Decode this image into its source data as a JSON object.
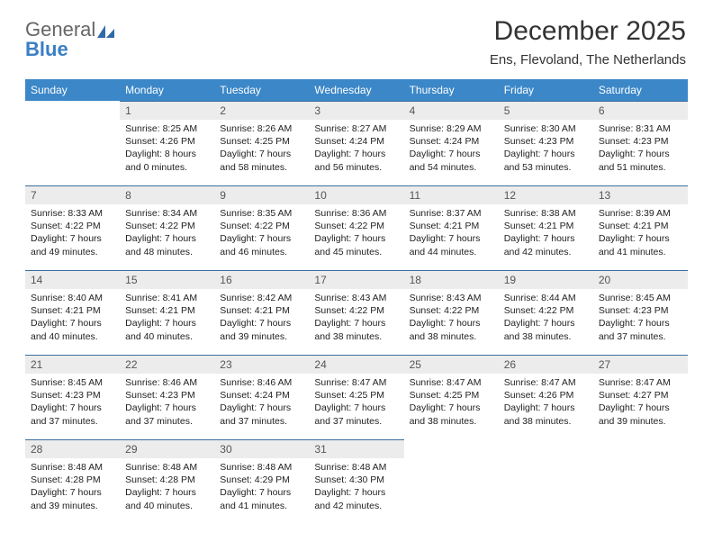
{
  "logo": {
    "part1": "General",
    "part2": "Blue"
  },
  "header": {
    "title": "December 2025",
    "location": "Ens, Flevoland, The Netherlands"
  },
  "colors": {
    "header_bg": "#3b87c8",
    "header_text": "#ffffff",
    "daynum_bg": "#ececec",
    "daynum_border": "#3b6fa0",
    "text": "#222222",
    "logo_blue": "#3a7fc4"
  },
  "weekdays": [
    "Sunday",
    "Monday",
    "Tuesday",
    "Wednesday",
    "Thursday",
    "Friday",
    "Saturday"
  ],
  "leading_blanks": 1,
  "days": [
    {
      "n": "1",
      "sunrise": "8:25 AM",
      "sunset": "4:26 PM",
      "daylight": "8 hours and 0 minutes."
    },
    {
      "n": "2",
      "sunrise": "8:26 AM",
      "sunset": "4:25 PM",
      "daylight": "7 hours and 58 minutes."
    },
    {
      "n": "3",
      "sunrise": "8:27 AM",
      "sunset": "4:24 PM",
      "daylight": "7 hours and 56 minutes."
    },
    {
      "n": "4",
      "sunrise": "8:29 AM",
      "sunset": "4:24 PM",
      "daylight": "7 hours and 54 minutes."
    },
    {
      "n": "5",
      "sunrise": "8:30 AM",
      "sunset": "4:23 PM",
      "daylight": "7 hours and 53 minutes."
    },
    {
      "n": "6",
      "sunrise": "8:31 AM",
      "sunset": "4:23 PM",
      "daylight": "7 hours and 51 minutes."
    },
    {
      "n": "7",
      "sunrise": "8:33 AM",
      "sunset": "4:22 PM",
      "daylight": "7 hours and 49 minutes."
    },
    {
      "n": "8",
      "sunrise": "8:34 AM",
      "sunset": "4:22 PM",
      "daylight": "7 hours and 48 minutes."
    },
    {
      "n": "9",
      "sunrise": "8:35 AM",
      "sunset": "4:22 PM",
      "daylight": "7 hours and 46 minutes."
    },
    {
      "n": "10",
      "sunrise": "8:36 AM",
      "sunset": "4:22 PM",
      "daylight": "7 hours and 45 minutes."
    },
    {
      "n": "11",
      "sunrise": "8:37 AM",
      "sunset": "4:21 PM",
      "daylight": "7 hours and 44 minutes."
    },
    {
      "n": "12",
      "sunrise": "8:38 AM",
      "sunset": "4:21 PM",
      "daylight": "7 hours and 42 minutes."
    },
    {
      "n": "13",
      "sunrise": "8:39 AM",
      "sunset": "4:21 PM",
      "daylight": "7 hours and 41 minutes."
    },
    {
      "n": "14",
      "sunrise": "8:40 AM",
      "sunset": "4:21 PM",
      "daylight": "7 hours and 40 minutes."
    },
    {
      "n": "15",
      "sunrise": "8:41 AM",
      "sunset": "4:21 PM",
      "daylight": "7 hours and 40 minutes."
    },
    {
      "n": "16",
      "sunrise": "8:42 AM",
      "sunset": "4:21 PM",
      "daylight": "7 hours and 39 minutes."
    },
    {
      "n": "17",
      "sunrise": "8:43 AM",
      "sunset": "4:22 PM",
      "daylight": "7 hours and 38 minutes."
    },
    {
      "n": "18",
      "sunrise": "8:43 AM",
      "sunset": "4:22 PM",
      "daylight": "7 hours and 38 minutes."
    },
    {
      "n": "19",
      "sunrise": "8:44 AM",
      "sunset": "4:22 PM",
      "daylight": "7 hours and 38 minutes."
    },
    {
      "n": "20",
      "sunrise": "8:45 AM",
      "sunset": "4:23 PM",
      "daylight": "7 hours and 37 minutes."
    },
    {
      "n": "21",
      "sunrise": "8:45 AM",
      "sunset": "4:23 PM",
      "daylight": "7 hours and 37 minutes."
    },
    {
      "n": "22",
      "sunrise": "8:46 AM",
      "sunset": "4:23 PM",
      "daylight": "7 hours and 37 minutes."
    },
    {
      "n": "23",
      "sunrise": "8:46 AM",
      "sunset": "4:24 PM",
      "daylight": "7 hours and 37 minutes."
    },
    {
      "n": "24",
      "sunrise": "8:47 AM",
      "sunset": "4:25 PM",
      "daylight": "7 hours and 37 minutes."
    },
    {
      "n": "25",
      "sunrise": "8:47 AM",
      "sunset": "4:25 PM",
      "daylight": "7 hours and 38 minutes."
    },
    {
      "n": "26",
      "sunrise": "8:47 AM",
      "sunset": "4:26 PM",
      "daylight": "7 hours and 38 minutes."
    },
    {
      "n": "27",
      "sunrise": "8:47 AM",
      "sunset": "4:27 PM",
      "daylight": "7 hours and 39 minutes."
    },
    {
      "n": "28",
      "sunrise": "8:48 AM",
      "sunset": "4:28 PM",
      "daylight": "7 hours and 39 minutes."
    },
    {
      "n": "29",
      "sunrise": "8:48 AM",
      "sunset": "4:28 PM",
      "daylight": "7 hours and 40 minutes."
    },
    {
      "n": "30",
      "sunrise": "8:48 AM",
      "sunset": "4:29 PM",
      "daylight": "7 hours and 41 minutes."
    },
    {
      "n": "31",
      "sunrise": "8:48 AM",
      "sunset": "4:30 PM",
      "daylight": "7 hours and 42 minutes."
    }
  ],
  "labels": {
    "sunrise": "Sunrise:",
    "sunset": "Sunset:",
    "daylight": "Daylight:"
  }
}
